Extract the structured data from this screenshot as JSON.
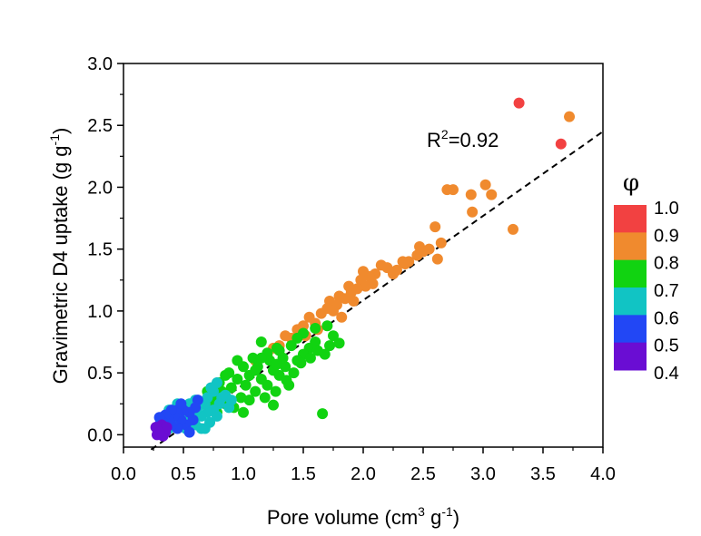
{
  "chart_data": {
    "type": "scatter",
    "xlabel": {
      "pre": "Pore volume (cm",
      "sup1": "3",
      "mid": " g",
      "sup2": "-1",
      "post": ")"
    },
    "ylabel": {
      "pre": "Gravimetric D4 uptake (g g",
      "sup": "-1",
      "post": ")"
    },
    "xlim": [
      0.0,
      4.0
    ],
    "ylim": [
      -0.1,
      3.0
    ],
    "xticks": [
      "0.0",
      "0.5",
      "1.0",
      "1.5",
      "2.0",
      "2.5",
      "3.0",
      "3.5",
      "4.0"
    ],
    "yticks": [
      "0.0",
      "0.5",
      "1.0",
      "1.5",
      "2.0",
      "2.5",
      "3.0"
    ],
    "annotation": {
      "pre": "R",
      "sup": "2",
      "post": "=0.92"
    },
    "fit_line": {
      "style": "dashed",
      "color": "#000000",
      "x": [
        0.23,
        4.0
      ],
      "y": [
        -0.12,
        2.45
      ]
    },
    "colorbar": {
      "label": "φ",
      "ticks": [
        "1.0",
        "0.9",
        "0.8",
        "0.7",
        "0.6",
        "0.5",
        "0.4"
      ],
      "bins": [
        {
          "range": [
            0.9,
            1.0
          ],
          "color": "#f24141"
        },
        {
          "range": [
            0.8,
            0.9
          ],
          "color": "#f08a2e"
        },
        {
          "range": [
            0.7,
            0.8
          ],
          "color": "#11d311"
        },
        {
          "range": [
            0.6,
            0.7
          ],
          "color": "#11c4c4"
        },
        {
          "range": [
            0.5,
            0.6
          ],
          "color": "#2247f5"
        },
        {
          "range": [
            0.4,
            0.5
          ],
          "color": "#6a0dd3"
        }
      ]
    },
    "series": [
      {
        "phi_bin": "0.9-1.0",
        "color": "#f24141",
        "points": [
          [
            3.3,
            2.68
          ],
          [
            3.65,
            2.35
          ]
        ]
      },
      {
        "phi_bin": "0.8-0.9",
        "color": "#f08a2e",
        "points": [
          [
            3.72,
            2.57
          ],
          [
            3.02,
            2.02
          ],
          [
            3.07,
            1.94
          ],
          [
            2.7,
            1.98
          ],
          [
            2.75,
            1.98
          ],
          [
            2.9,
            1.94
          ],
          [
            2.91,
            1.8
          ],
          [
            3.25,
            1.66
          ],
          [
            2.6,
            1.68
          ],
          [
            2.65,
            1.55
          ],
          [
            2.47,
            1.52
          ],
          [
            2.5,
            1.48
          ],
          [
            2.45,
            1.45
          ],
          [
            2.38,
            1.4
          ],
          [
            2.35,
            1.38
          ],
          [
            2.33,
            1.4
          ],
          [
            2.2,
            1.35
          ],
          [
            2.25,
            1.3
          ],
          [
            2.15,
            1.37
          ],
          [
            2.1,
            1.3
          ],
          [
            2.05,
            1.28
          ],
          [
            2.0,
            1.32
          ],
          [
            2.02,
            1.2
          ],
          [
            1.98,
            1.25
          ],
          [
            1.95,
            1.18
          ],
          [
            1.9,
            1.15
          ],
          [
            1.88,
            1.2
          ],
          [
            1.85,
            1.1
          ],
          [
            1.8,
            1.12
          ],
          [
            1.78,
            1.05
          ],
          [
            1.75,
            1.0
          ],
          [
            1.72,
            1.08
          ],
          [
            1.65,
            0.98
          ],
          [
            1.6,
            0.9
          ],
          [
            1.55,
            0.95
          ],
          [
            1.5,
            0.88
          ],
          [
            1.45,
            0.85
          ],
          [
            1.4,
            0.78
          ],
          [
            1.35,
            0.8
          ],
          [
            1.3,
            0.72
          ],
          [
            1.25,
            0.7
          ],
          [
            1.2,
            0.65
          ],
          [
            1.1,
            0.6
          ],
          [
            2.62,
            1.42
          ],
          [
            2.55,
            1.5
          ],
          [
            1.92,
            1.08
          ],
          [
            1.7,
            1.02
          ],
          [
            1.82,
            0.95
          ],
          [
            2.08,
            1.22
          ],
          [
            2.28,
            1.33
          ],
          [
            1.62,
            0.85
          ],
          [
            1.52,
            0.8
          ]
        ]
      },
      {
        "phi_bin": "0.7-0.8",
        "color": "#11d311",
        "points": [
          [
            1.66,
            0.17
          ],
          [
            1.75,
            0.8
          ],
          [
            1.72,
            0.72
          ],
          [
            1.7,
            0.88
          ],
          [
            1.68,
            0.65
          ],
          [
            1.6,
            0.75
          ],
          [
            1.55,
            0.7
          ],
          [
            1.5,
            0.65
          ],
          [
            1.5,
            0.82
          ],
          [
            1.45,
            0.6
          ],
          [
            1.42,
            0.5
          ],
          [
            1.4,
            0.72
          ],
          [
            1.38,
            0.4
          ],
          [
            1.35,
            0.55
          ],
          [
            1.33,
            0.62
          ],
          [
            1.3,
            0.48
          ],
          [
            1.28,
            0.7
          ],
          [
            1.27,
            0.35
          ],
          [
            1.25,
            0.52
          ],
          [
            1.22,
            0.6
          ],
          [
            1.2,
            0.4
          ],
          [
            1.18,
            0.3
          ],
          [
            1.15,
            0.75
          ],
          [
            1.15,
            0.45
          ],
          [
            1.12,
            0.55
          ],
          [
            1.1,
            0.35
          ],
          [
            1.08,
            0.62
          ],
          [
            1.05,
            0.28
          ],
          [
            1.05,
            0.48
          ],
          [
            1.02,
            0.4
          ],
          [
            1.0,
            0.55
          ],
          [
            0.98,
            0.3
          ],
          [
            0.95,
            0.45
          ],
          [
            0.92,
            0.22
          ],
          [
            0.9,
            0.38
          ],
          [
            0.88,
            0.5
          ],
          [
            0.85,
            0.25
          ],
          [
            0.82,
            0.35
          ],
          [
            0.8,
            0.42
          ],
          [
            0.75,
            0.28
          ],
          [
            0.72,
            0.2
          ],
          [
            0.7,
            0.35
          ],
          [
            1.2,
            0.66
          ],
          [
            1.3,
            0.68
          ],
          [
            1.45,
            0.78
          ],
          [
            1.6,
            0.86
          ],
          [
            1.36,
            0.44
          ],
          [
            1.48,
            0.58
          ],
          [
            1.25,
            0.24
          ],
          [
            1.15,
            0.62
          ],
          [
            1.0,
            0.18
          ],
          [
            0.95,
            0.6
          ],
          [
            0.85,
            0.48
          ],
          [
            1.62,
            0.68
          ],
          [
            1.8,
            0.74
          ],
          [
            1.56,
            0.62
          ],
          [
            1.28,
            0.57
          ],
          [
            1.1,
            0.52
          ],
          [
            0.78,
            0.18
          ],
          [
            0.68,
            0.25
          ]
        ]
      },
      {
        "phi_bin": "0.6-0.7",
        "color": "#11c4c4",
        "points": [
          [
            0.82,
            0.3
          ],
          [
            0.8,
            0.25
          ],
          [
            0.78,
            0.42
          ],
          [
            0.75,
            0.2
          ],
          [
            0.75,
            0.35
          ],
          [
            0.72,
            0.1
          ],
          [
            0.7,
            0.3
          ],
          [
            0.7,
            0.18
          ],
          [
            0.68,
            0.25
          ],
          [
            0.65,
            0.05
          ],
          [
            0.65,
            0.15
          ],
          [
            0.62,
            0.22
          ],
          [
            0.6,
            0.08
          ],
          [
            0.6,
            0.28
          ],
          [
            0.58,
            0.18
          ],
          [
            0.55,
            0.12
          ],
          [
            0.55,
            0.25
          ],
          [
            0.52,
            0.05
          ],
          [
            0.5,
            0.15
          ],
          [
            0.5,
            0.22
          ],
          [
            0.48,
            0.08
          ],
          [
            0.45,
            0.18
          ],
          [
            0.45,
            0.25
          ],
          [
            0.42,
            0.1
          ],
          [
            0.42,
            0.2
          ],
          [
            0.4,
            0.15
          ],
          [
            0.38,
            0.05
          ],
          [
            0.38,
            0.2
          ],
          [
            0.35,
            0.12
          ],
          [
            0.85,
            0.32
          ],
          [
            0.88,
            0.22
          ],
          [
            0.78,
            0.15
          ],
          [
            0.68,
            0.05
          ],
          [
            0.9,
            0.28
          ],
          [
            0.73,
            0.38
          ]
        ]
      },
      {
        "phi_bin": "0.5-0.6",
        "color": "#2247f5",
        "points": [
          [
            0.62,
            0.28
          ],
          [
            0.6,
            0.22
          ],
          [
            0.58,
            0.12
          ],
          [
            0.55,
            0.18
          ],
          [
            0.52,
            0.08
          ],
          [
            0.5,
            0.2
          ],
          [
            0.48,
            0.12
          ],
          [
            0.45,
            0.05
          ],
          [
            0.45,
            0.2
          ],
          [
            0.42,
            0.15
          ],
          [
            0.4,
            0.08
          ],
          [
            0.4,
            0.2
          ],
          [
            0.38,
            0.12
          ],
          [
            0.35,
            0.05
          ],
          [
            0.35,
            0.16
          ],
          [
            0.33,
            0.1
          ],
          [
            0.32,
            0.02
          ],
          [
            0.3,
            0.08
          ],
          [
            0.3,
            0.14
          ],
          [
            0.48,
            0.25
          ],
          [
            0.55,
            0.02
          ],
          [
            0.28,
            0.05
          ]
        ]
      },
      {
        "phi_bin": "0.4-0.5",
        "color": "#6a0dd3",
        "points": [
          [
            0.3,
            0.05
          ],
          [
            0.28,
            0.0
          ],
          [
            0.32,
            0.08
          ],
          [
            0.35,
            0.02
          ],
          [
            0.27,
            0.06
          ],
          [
            0.33,
            -0.01
          ],
          [
            0.36,
            0.06
          ],
          [
            0.3,
            0.02
          ]
        ]
      }
    ]
  }
}
